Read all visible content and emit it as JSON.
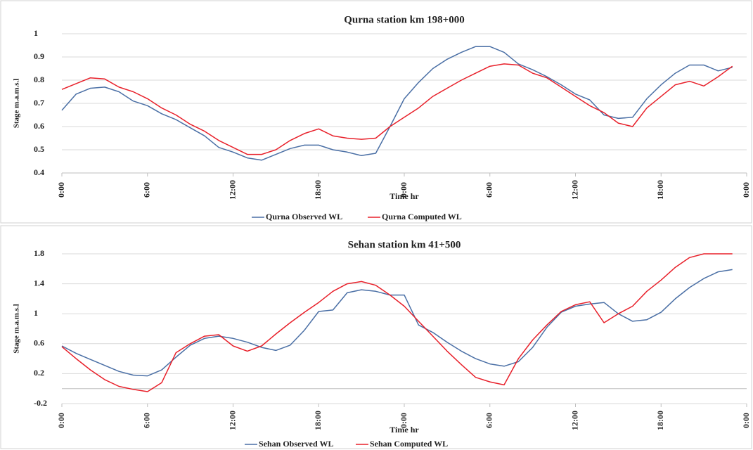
{
  "chart_data": [
    {
      "type": "line",
      "title": "Qurna station km 198+000",
      "x_label": "Time hr",
      "y_label": "Stage m.a.m.s.l",
      "x": [
        0,
        1,
        2,
        3,
        4,
        5,
        6,
        7,
        8,
        9,
        10,
        11,
        12,
        13,
        14,
        15,
        16,
        17,
        18,
        19,
        20,
        21,
        22,
        23,
        24,
        25,
        26,
        27,
        28,
        29,
        30,
        31,
        32,
        33,
        34,
        35,
        36,
        37,
        38,
        39,
        40,
        41,
        42,
        43,
        44,
        45,
        46,
        47
      ],
      "series": [
        {
          "name": "Qurna Observed WL",
          "color": "#4a6fa5",
          "values": [
            0.67,
            0.74,
            0.765,
            0.77,
            0.75,
            0.71,
            0.69,
            0.655,
            0.63,
            0.595,
            0.56,
            0.51,
            0.49,
            0.465,
            0.455,
            0.48,
            0.505,
            0.52,
            0.52,
            0.5,
            0.49,
            0.475,
            0.485,
            0.6,
            0.72,
            0.79,
            0.85,
            0.89,
            0.92,
            0.945,
            0.945,
            0.92,
            0.87,
            0.845,
            0.815,
            0.78,
            0.74,
            0.715,
            0.65,
            0.635,
            0.64,
            0.72,
            0.78,
            0.83,
            0.865,
            0.865,
            0.84,
            0.855
          ]
        },
        {
          "name": "Qurna Computed WL",
          "color": "#e8202a",
          "values": [
            0.76,
            0.785,
            0.81,
            0.805,
            0.77,
            0.75,
            0.72,
            0.68,
            0.65,
            0.61,
            0.58,
            0.54,
            0.51,
            0.48,
            0.48,
            0.5,
            0.54,
            0.57,
            0.59,
            0.56,
            0.55,
            0.545,
            0.55,
            0.6,
            0.64,
            0.68,
            0.73,
            0.765,
            0.8,
            0.83,
            0.86,
            0.87,
            0.865,
            0.83,
            0.81,
            0.77,
            0.73,
            0.69,
            0.66,
            0.615,
            0.6,
            0.68,
            0.73,
            0.78,
            0.795,
            0.775,
            0.815,
            0.86
          ]
        }
      ],
      "xlim": [
        0,
        48
      ],
      "xticks": [
        {
          "value": 0,
          "label": "0:00"
        },
        {
          "value": 6,
          "label": "6:00"
        },
        {
          "value": 12,
          "label": "12:00"
        },
        {
          "value": 18,
          "label": "18:00"
        },
        {
          "value": 24,
          "label": "0:00"
        },
        {
          "value": 30,
          "label": "6:00"
        },
        {
          "value": 36,
          "label": "12:00"
        },
        {
          "value": 42,
          "label": "18:00"
        },
        {
          "value": 48,
          "label": "0:00"
        }
      ],
      "ylim": [
        0.4,
        1
      ],
      "yticks": [
        0.4,
        0.5,
        0.6,
        0.7,
        0.8,
        0.9,
        1
      ],
      "grid": true,
      "legend": "bottom"
    },
    {
      "type": "line",
      "title": "Sehan station km 41+500",
      "x_label": "Time hr",
      "y_label": "Stage m.a.m.s.l",
      "x": [
        0,
        1,
        2,
        3,
        4,
        5,
        6,
        7,
        8,
        9,
        10,
        11,
        12,
        13,
        14,
        15,
        16,
        17,
        18,
        19,
        20,
        21,
        22,
        23,
        24,
        25,
        26,
        27,
        28,
        29,
        30,
        31,
        32,
        33,
        34,
        35,
        36,
        37,
        38,
        39,
        40,
        41,
        42,
        43,
        44,
        45,
        46,
        47
      ],
      "series": [
        {
          "name": "Sehan Observed WL",
          "color": "#4a6fa5",
          "values": [
            0.57,
            0.47,
            0.39,
            0.31,
            0.23,
            0.18,
            0.17,
            0.25,
            0.42,
            0.58,
            0.67,
            0.7,
            0.67,
            0.62,
            0.55,
            0.51,
            0.58,
            0.78,
            1.03,
            1.05,
            1.28,
            1.32,
            1.3,
            1.25,
            1.25,
            0.85,
            0.75,
            0.62,
            0.5,
            0.4,
            0.33,
            0.3,
            0.36,
            0.55,
            0.82,
            1.02,
            1.1,
            1.13,
            1.15,
            1.0,
            0.9,
            0.92,
            1.02,
            1.2,
            1.35,
            1.47,
            1.56,
            1.59
          ]
        },
        {
          "name": "Sehan Computed WL",
          "color": "#e8202a",
          "values": [
            0.56,
            0.4,
            0.25,
            0.12,
            0.03,
            -0.01,
            -0.04,
            0.08,
            0.48,
            0.6,
            0.7,
            0.72,
            0.57,
            0.5,
            0.57,
            0.73,
            0.88,
            1.02,
            1.15,
            1.3,
            1.4,
            1.43,
            1.38,
            1.25,
            1.1,
            0.9,
            0.7,
            0.5,
            0.32,
            0.15,
            0.09,
            0.05,
            0.4,
            0.65,
            0.85,
            1.03,
            1.12,
            1.16,
            0.88,
            1.0,
            1.1,
            1.3,
            1.45,
            1.62,
            1.75,
            1.8,
            1.8,
            1.8
          ]
        }
      ],
      "xlim": [
        0,
        48
      ],
      "xticks": [
        {
          "value": 0,
          "label": "0:00"
        },
        {
          "value": 6,
          "label": "6:00"
        },
        {
          "value": 12,
          "label": "12:00"
        },
        {
          "value": 18,
          "label": "18:00"
        },
        {
          "value": 24,
          "label": "0:00"
        },
        {
          "value": 30,
          "label": "6:00"
        },
        {
          "value": 36,
          "label": "12:00"
        },
        {
          "value": 42,
          "label": "18:00"
        },
        {
          "value": 48,
          "label": "0:00"
        }
      ],
      "ylim": [
        -0.2,
        1.8
      ],
      "yticks": [
        -0.2,
        0.2,
        0.6,
        1,
        1.4,
        1.8
      ],
      "grid": true,
      "legend": "bottom"
    }
  ]
}
